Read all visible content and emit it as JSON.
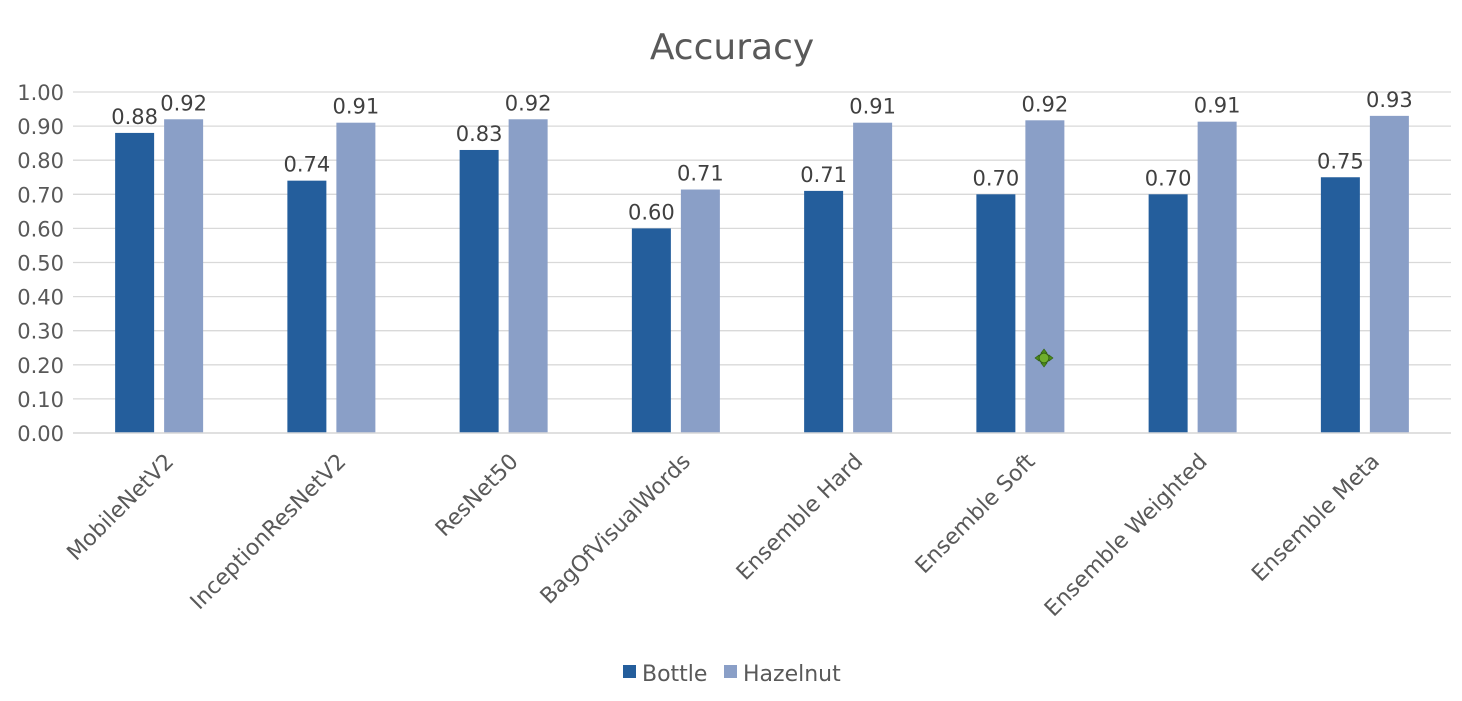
{
  "chart_data": {
    "type": "bar",
    "title": "Accuracy",
    "categories": [
      "MobileNetV2",
      "InceptionResNetV2",
      "ResNet50",
      "BagOfVisualWords",
      "Ensemble Hard",
      "Ensemble Soft",
      "Ensemble Weighted",
      "Ensemble Meta"
    ],
    "series": [
      {
        "name": "Bottle",
        "color": "#245e9c",
        "values": [
          0.88,
          0.74,
          0.83,
          0.6,
          0.71,
          0.7,
          0.7,
          0.75
        ],
        "labels": [
          "0.88",
          "0.74",
          "0.83",
          "0.60",
          "0.71",
          "0.70",
          "0.70",
          "0.75"
        ]
      },
      {
        "name": "Hazelnut",
        "color": "#8a9fc7",
        "values": [
          0.92,
          0.91,
          0.92,
          0.714,
          0.91,
          0.917,
          0.913,
          0.93
        ],
        "labels": [
          "0.92",
          "0.91",
          "0.92",
          "0.71",
          "0.91",
          "0.92",
          "0.91",
          "0.93"
        ]
      }
    ],
    "ylim": [
      0,
      1
    ],
    "ytick_labels": [
      "0.00",
      "0.10",
      "0.20",
      "0.30",
      "0.40",
      "0.50",
      "0.60",
      "0.70",
      "0.80",
      "0.90",
      "1.00"
    ],
    "grid": true,
    "legend_position": "bottom",
    "colors": {
      "text": "#404040",
      "axis_text": "#595959",
      "grid": "#d9d9d9"
    }
  },
  "overlay": {
    "cursor_icon": "move-cursor-icon"
  }
}
